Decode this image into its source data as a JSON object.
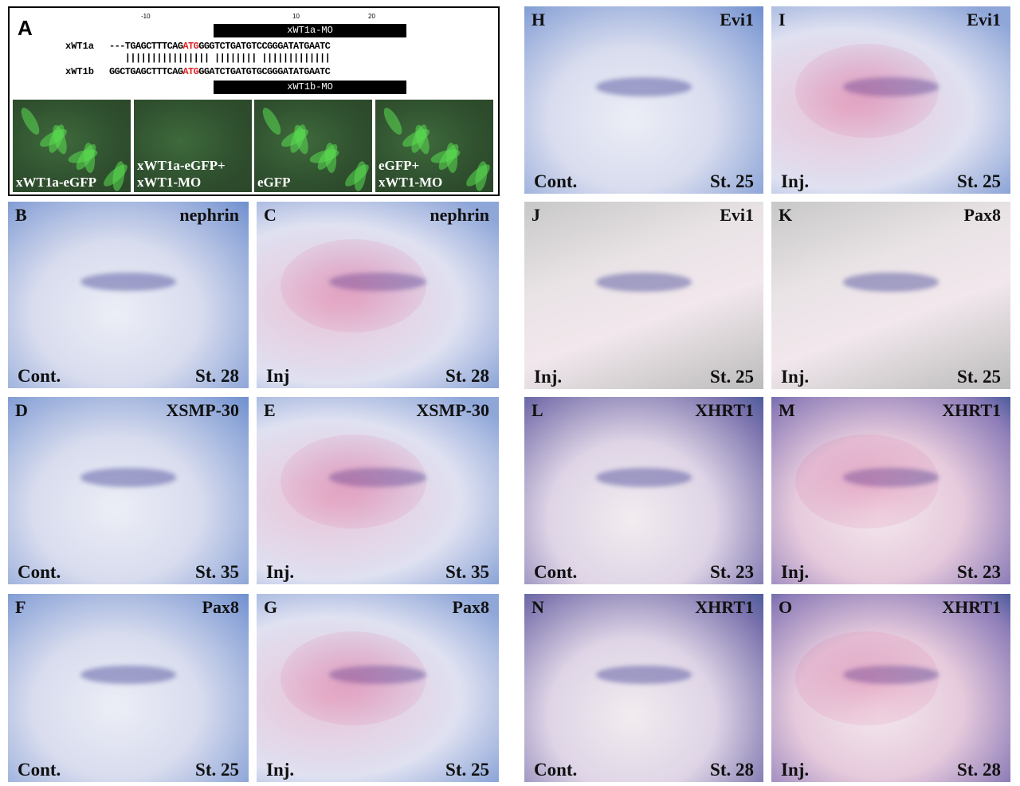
{
  "panel_a": {
    "letter": "A",
    "ticks": [
      "-10",
      "10",
      "20"
    ],
    "mo_a": "xWT1a-MO",
    "mo_b": "xWT1b-MO",
    "seq_a": {
      "name": "xWT1a",
      "pre": "---TGAGCTTTCAG",
      "start": "ATG",
      "post": "GGGTCTGATGTCCGGGATATGAATC"
    },
    "seq_b": {
      "name": "xWT1b",
      "pre": "GGCTGAGCTTTCAG",
      "start": "ATG",
      "post": "GGATCTGATGTGCGGGATATGAATC"
    },
    "start_codon_color": "#e01f1f",
    "gfp_panels": [
      {
        "label": "xWT1a-eGFP",
        "brightness": "bright"
      },
      {
        "label": "xWT1a-eGFP+\nxWT1-MO",
        "brightness": "dim"
      },
      {
        "label": "eGFP",
        "brightness": "bright"
      },
      {
        "label": "eGFP+\nxWT1-MO",
        "brightness": "bright"
      }
    ]
  },
  "panels": [
    {
      "letter": "B",
      "gene": "nephrin",
      "condition": "Cont.",
      "stage": "St. 28"
    },
    {
      "letter": "C",
      "gene": "nephrin",
      "condition": "Inj",
      "stage": "St. 28"
    },
    {
      "letter": "D",
      "gene": "XSMP-30",
      "condition": "Cont.",
      "stage": "St. 35"
    },
    {
      "letter": "E",
      "gene": "XSMP-30",
      "condition": "Inj.",
      "stage": "St. 35"
    },
    {
      "letter": "F",
      "gene": "Pax8",
      "condition": "Cont.",
      "stage": "St. 25"
    },
    {
      "letter": "G",
      "gene": "Pax8",
      "condition": "Inj.",
      "stage": "St. 25"
    },
    {
      "letter": "H",
      "gene": "Evi1",
      "condition": "Cont.",
      "stage": "St. 25"
    },
    {
      "letter": "I",
      "gene": "Evi1",
      "condition": "Inj.",
      "stage": "St. 25"
    },
    {
      "letter": "J",
      "gene": "Evi1",
      "condition": "Inj.",
      "stage": "St. 25"
    },
    {
      "letter": "K",
      "gene": "Pax8",
      "condition": "Inj.",
      "stage": "St. 25"
    },
    {
      "letter": "L",
      "gene": "XHRT1",
      "condition": "Cont.",
      "stage": "St. 23"
    },
    {
      "letter": "M",
      "gene": "XHRT1",
      "condition": "Inj.",
      "stage": "St. 23"
    },
    {
      "letter": "N",
      "gene": "XHRT1",
      "condition": "Cont.",
      "stage": "St. 28"
    },
    {
      "letter": "O",
      "gene": "XHRT1",
      "condition": "Inj.",
      "stage": "St. 28"
    }
  ]
}
